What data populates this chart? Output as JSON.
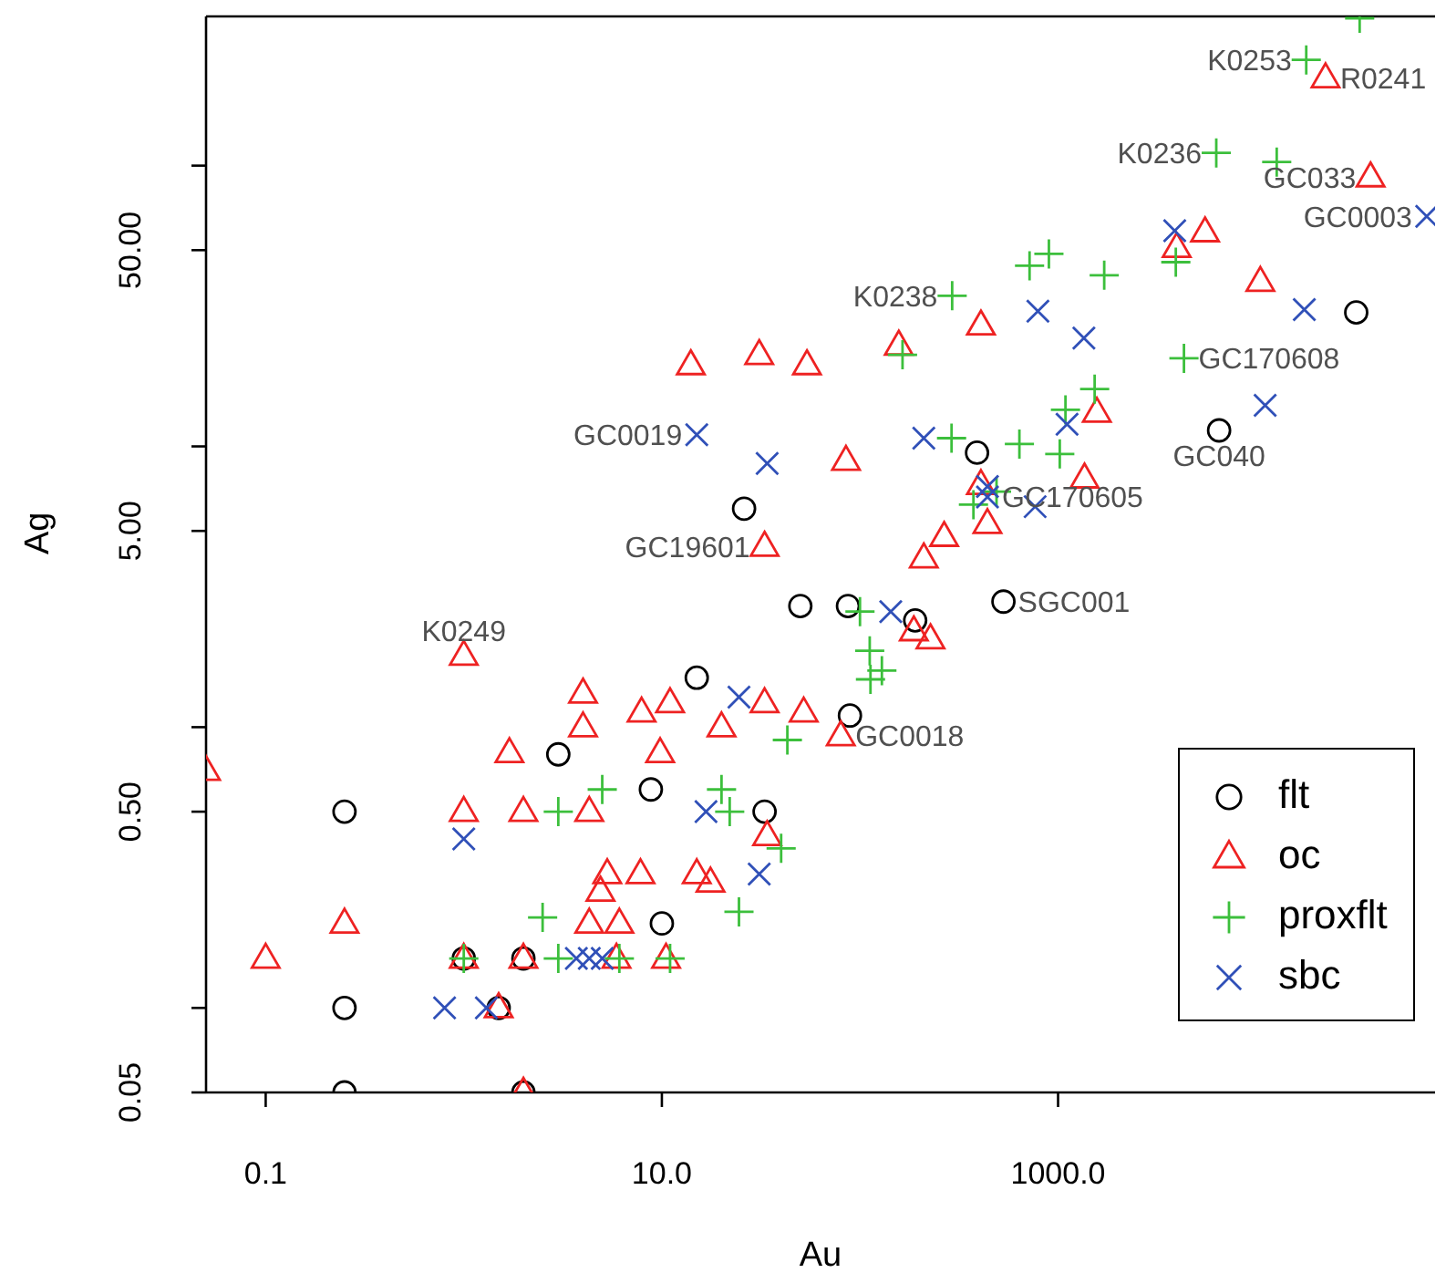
{
  "chart_data": {
    "type": "scatter",
    "xlabel": "Au",
    "ylabel": "Ag",
    "log": "xy",
    "legend": "bottom right",
    "xlim": [
      0.05,
      80000
    ],
    "xticks": [
      0.1,
      {
        "value": 10,
        "label": "10.0"
      },
      {
        "value": 1000,
        "label": "1000.0"
      }
    ],
    "ylim": [
      0.05,
      340
    ],
    "yticks": [
      0.05,
      {
        "value": 0.1,
        "label": null
      },
      {
        "value": 0.5,
        "label": "0.50"
      },
      {
        "value": 1,
        "label": null
      },
      {
        "value": 5,
        "label": "5.00"
      },
      {
        "value": 10,
        "label": null
      },
      {
        "value": 50,
        "label": "50.00"
      },
      {
        "value": 100,
        "label": null
      }
    ],
    "series": [
      {
        "name": "flt",
        "color": "#000000",
        "marker": "circle",
        "x": [
          0.25,
          0.25,
          0.25,
          1.0,
          2.0,
          1.5,
          2.0,
          3,
          8.8,
          10,
          15,
          26,
          33,
          50,
          87,
          89,
          190,
          390,
          530,
          6500,
          32000
        ],
        "values": [
          0.5,
          0.1,
          0.05,
          0.15,
          0.15,
          0.1,
          0.05,
          0.8,
          0.6,
          0.2,
          1.5,
          6,
          0.5,
          2.7,
          2.7,
          1.1,
          2.4,
          9.5,
          2.8,
          11.4,
          30
        ]
      },
      {
        "name": "oc",
        "color": "#ee2222",
        "marker": "triangle",
        "x": [
          0.05,
          0.1,
          0.25,
          1.0,
          1.0,
          1.0,
          1.5,
          1.7,
          2.0,
          2.0,
          2.0,
          4,
          4,
          4.3,
          4.3,
          4.9,
          5.3,
          6.1,
          5.9,
          7.9,
          7.8,
          9.8,
          11,
          10.5,
          14,
          15,
          17.6,
          20,
          31,
          33,
          33,
          34,
          52,
          54,
          80,
          85,
          157,
          187,
          210,
          227,
          266,
          408,
          408,
          440,
          1360,
          1570,
          3970,
          5520,
          10500,
          22400,
          37800
        ],
        "values": [
          0.7,
          0.15,
          0.2,
          1.8,
          0.5,
          0.15,
          0.1,
          0.81,
          0.5,
          0.15,
          0.05,
          1.32,
          1.0,
          0.5,
          0.2,
          0.26,
          0.3,
          0.2,
          0.15,
          1.13,
          0.3,
          0.81,
          1.22,
          0.15,
          19.5,
          0.3,
          0.28,
          1.0,
          21.2,
          4.4,
          1.22,
          0.41,
          1.13,
          19.5,
          0.93,
          8.9,
          22.9,
          2.2,
          4.0,
          2.06,
          4.77,
          27,
          7.3,
          5.3,
          7.7,
          13.2,
          51,
          58,
          38.6,
          205,
          91
        ]
      },
      {
        "name": "proxflt",
        "color": "#3cbf3c",
        "marker": "cross",
        "x": [
          1.0,
          2.5,
          3,
          3,
          5.0,
          6.1,
          11,
          20,
          22,
          24.5,
          40,
          43,
          100,
          112,
          113,
          129,
          164,
          292,
          290,
          374,
          489,
          638,
          718,
          899,
          1020,
          1090,
          1530,
          1710,
          3930,
          4320,
          6290,
          12700,
          17900,
          33300
        ],
        "values": [
          0.15,
          0.21,
          0.5,
          0.15,
          0.6,
          0.15,
          0.15,
          0.6,
          0.5,
          0.22,
          0.37,
          0.9,
          2.58,
          1.87,
          1.48,
          1.59,
          21.2,
          34.4,
          10.7,
          6.2,
          6.9,
          10.2,
          44,
          48.5,
          9.4,
          13.5,
          16,
          40.7,
          45.3,
          20.6,
          111,
          103,
          238,
          335
        ]
      },
      {
        "name": "sbc",
        "color": "#3050b8",
        "marker": "x",
        "x": [
          0.8,
          1.0,
          1.3,
          3.7,
          4.3,
          5.0,
          15,
          16.7,
          24.5,
          31,
          34,
          143,
          210,
          440,
          440,
          766,
          791,
          1110,
          1350,
          3880,
          11100,
          17500,
          72600
        ],
        "values": [
          0.1,
          0.4,
          0.1,
          0.15,
          0.15,
          0.15,
          11,
          0.5,
          1.28,
          0.3,
          8.7,
          2.58,
          10.7,
          7.2,
          6.6,
          6.1,
          30.3,
          12,
          24.3,
          58.6,
          14,
          30.7,
          66
        ]
      }
    ],
    "annotations": [
      {
        "text": "K0249",
        "x": 1.0,
        "y": 1.8
      },
      {
        "text": "GC0019",
        "x": 15,
        "y": 11
      },
      {
        "text": "GC19601",
        "x": 33,
        "y": 4.4
      },
      {
        "text": "GC0018",
        "x": 80,
        "y": 0.93
      },
      {
        "text": "SGC001",
        "x": 530,
        "y": 2.8
      },
      {
        "text": "GC170605",
        "x": 440,
        "y": 6.6
      },
      {
        "text": "GC040",
        "x": 6500,
        "y": 11.4
      },
      {
        "text": "GC170608",
        "x": 4320,
        "y": 20.6
      },
      {
        "text": "K0238",
        "x": 292,
        "y": 34.4
      },
      {
        "text": "K0236",
        "x": 6290,
        "y": 111
      },
      {
        "text": "K0253",
        "x": 17900,
        "y": 238
      },
      {
        "text": "R0241",
        "x": 22400,
        "y": 205
      },
      {
        "text": "GC033",
        "x": 37800,
        "y": 91
      },
      {
        "text": "GC0003",
        "x": 72600,
        "y": 66
      }
    ]
  }
}
